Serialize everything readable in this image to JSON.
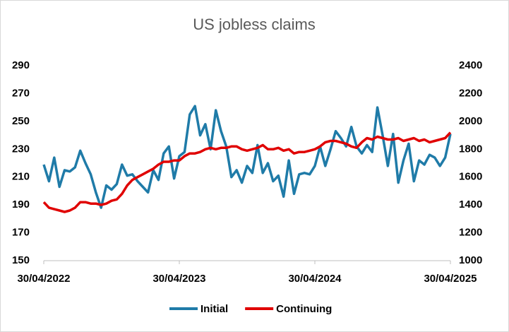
{
  "chart_data": {
    "type": "line",
    "title": "US jobless claims",
    "categories": [
      "30/04/2022",
      null,
      null,
      null,
      null,
      null,
      null,
      null,
      null,
      null,
      null,
      null,
      null,
      null,
      null,
      null,
      null,
      null,
      null,
      null,
      null,
      null,
      null,
      null,
      null,
      null,
      "30/04/2023",
      null,
      null,
      null,
      null,
      null,
      null,
      null,
      null,
      null,
      null,
      null,
      null,
      null,
      null,
      null,
      null,
      null,
      null,
      null,
      null,
      null,
      null,
      null,
      null,
      null,
      "30/04/2024",
      null,
      null,
      null,
      null,
      null,
      null,
      null,
      null,
      null,
      null,
      null,
      null,
      null,
      null,
      null,
      null,
      null,
      null,
      null,
      null,
      null,
      null,
      null,
      null,
      null,
      "30/04/2025"
    ],
    "series": [
      {
        "name": "Initial",
        "color": "#1f7ba8",
        "values": [
          219,
          207,
          224,
          203,
          215,
          214,
          217,
          229,
          220,
          212,
          199,
          188,
          204,
          201,
          205,
          219,
          211,
          212,
          207,
          203,
          199,
          215,
          208,
          227,
          232,
          209,
          225,
          228,
          255,
          261,
          240,
          248,
          230,
          258,
          243,
          232,
          210,
          215,
          206,
          218,
          213,
          233,
          213,
          220,
          207,
          211,
          196,
          222,
          198,
          212,
          213,
          212,
          218,
          232,
          218,
          230,
          243,
          238,
          232,
          246,
          232,
          227,
          233,
          228,
          260,
          240,
          218,
          241,
          206,
          222,
          234,
          207,
          222,
          219,
          226,
          224,
          218,
          224,
          241
        ]
      },
      {
        "name": "Continuing",
        "color": "#e00000",
        "axis": "y2",
        "values": [
          1420,
          1380,
          1370,
          1360,
          1350,
          1360,
          1380,
          1420,
          1420,
          1410,
          1410,
          1400,
          1410,
          1430,
          1440,
          1480,
          1540,
          1580,
          1600,
          1620,
          1640,
          1660,
          1690,
          1710,
          1710,
          1720,
          1720,
          1750,
          1770,
          1770,
          1780,
          1800,
          1810,
          1800,
          1810,
          1810,
          1820,
          1820,
          1800,
          1790,
          1800,
          1810,
          1830,
          1800,
          1800,
          1810,
          1790,
          1800,
          1770,
          1780,
          1780,
          1790,
          1800,
          1820,
          1850,
          1860,
          1860,
          1850,
          1840,
          1820,
          1810,
          1850,
          1880,
          1870,
          1890,
          1880,
          1870,
          1870,
          1880,
          1860,
          1870,
          1880,
          1860,
          1870,
          1850,
          1860,
          1870,
          1880,
          1920
        ]
      }
    ],
    "ylim": [
      150,
      290
    ],
    "yticks": [
      150,
      170,
      190,
      210,
      230,
      250,
      270,
      290
    ],
    "y2lim": [
      1000,
      2400
    ],
    "y2ticks": [
      1000,
      1200,
      1400,
      1600,
      1800,
      2000,
      2200,
      2400
    ],
    "legend": "bottom"
  }
}
